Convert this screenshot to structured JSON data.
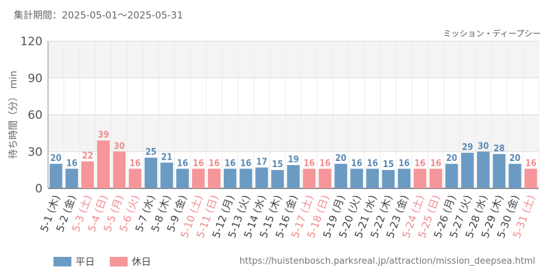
{
  "header": {
    "period": "集計期間：2025-05-01～2025-05-31",
    "attraction": "ミッション・ディープシー"
  },
  "footer": {
    "url": "https://huistenbosch.parksreal.jp/attraction/mission_deepsea.html"
  },
  "colors": {
    "weekday": "#6b9bc3",
    "holiday": "#f5969a"
  },
  "chart_data": {
    "type": "bar",
    "title": "ミッション・ディープシー",
    "ylabel": "待ち時間（分） min",
    "xlabel": "",
    "ylim": [
      0,
      120
    ],
    "yticks": [
      0,
      30,
      60,
      90,
      120
    ],
    "grid": true,
    "legend_position": "bottom-left",
    "legend": [
      {
        "name": "平日",
        "color": "#6b9bc3"
      },
      {
        "name": "休日",
        "color": "#f5969a"
      }
    ],
    "categories": [
      "5-1 (木)",
      "5-2 (金)",
      "5-3 (土)",
      "5-4 (日)",
      "5-5 (月)",
      "5-6 (火)",
      "5-7 (水)",
      "5-8 (木)",
      "5-9 (金)",
      "5-10 (土)",
      "5-11 (日)",
      "5-12 (月)",
      "5-13 (火)",
      "5-14 (水)",
      "5-15 (木)",
      "5-16 (金)",
      "5-17 (土)",
      "5-18 (日)",
      "5-19 (月)",
      "5-20 (火)",
      "5-21 (水)",
      "5-22 (木)",
      "5-23 (金)",
      "5-24 (土)",
      "5-25 (日)",
      "5-26 (月)",
      "5-27 (火)",
      "5-28 (水)",
      "5-29 (木)",
      "5-30 (金)",
      "5-31 (土)"
    ],
    "values": [
      20,
      16,
      22,
      39,
      30,
      16,
      25,
      21,
      16,
      16,
      16,
      16,
      16,
      17,
      15,
      19,
      16,
      16,
      20,
      16,
      16,
      15,
      16,
      16,
      16,
      20,
      29,
      30,
      28,
      20,
      16
    ],
    "day_type": [
      "平日",
      "平日",
      "休日",
      "休日",
      "休日",
      "休日",
      "平日",
      "平日",
      "平日",
      "休日",
      "休日",
      "平日",
      "平日",
      "平日",
      "平日",
      "平日",
      "休日",
      "休日",
      "平日",
      "平日",
      "平日",
      "平日",
      "平日",
      "休日",
      "休日",
      "平日",
      "平日",
      "平日",
      "平日",
      "平日",
      "休日"
    ]
  }
}
